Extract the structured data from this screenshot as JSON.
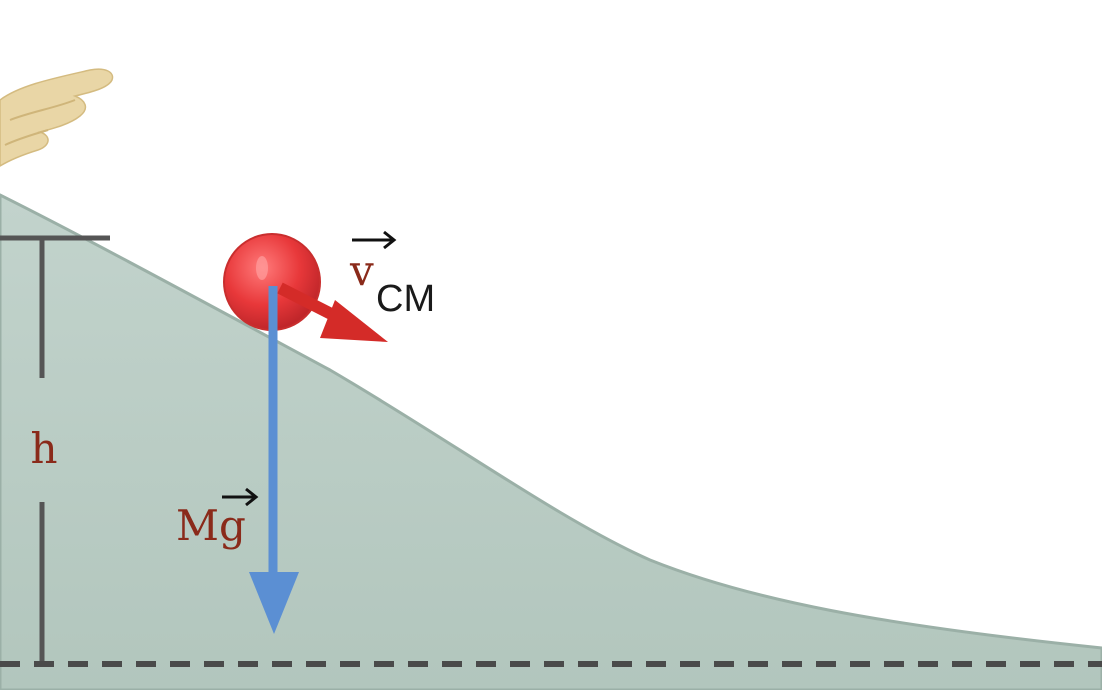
{
  "labels": {
    "height": "h",
    "weight_base": "Mg",
    "velocity_base": "v",
    "velocity_subscript": "CM"
  },
  "colors": {
    "hill": "#b8cbc3",
    "hill_edge": "#8fa59c",
    "ball": "#e8383a",
    "velocity_arrow": "#d42b28",
    "weight_arrow": "#5b8fd3",
    "dimension_line": "#5a5a5a",
    "label_red": "#8a2a1a",
    "hand": "#e8d2a0"
  },
  "icons": [
    "hand-icon",
    "arrow-right-icon"
  ]
}
